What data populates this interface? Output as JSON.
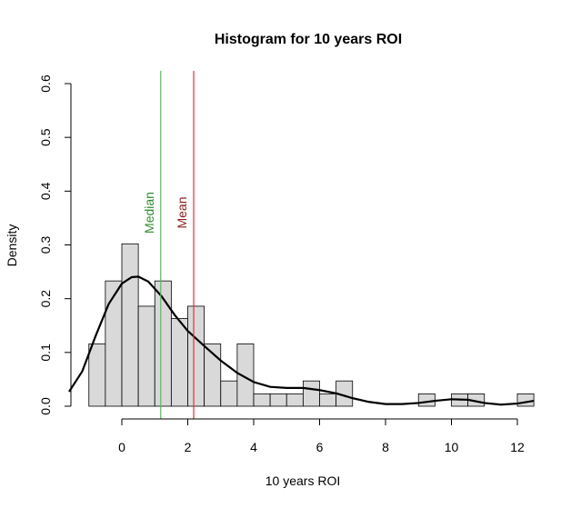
{
  "chart_data": {
    "type": "histogram",
    "title": "Histogram for 10 years ROI",
    "xlabel": "10 years ROI",
    "ylabel": "Density",
    "xlim": [
      -1.6,
      12.5
    ],
    "ylim": [
      0,
      0.6
    ],
    "x_ticks": [
      0,
      2,
      4,
      6,
      8,
      10,
      12
    ],
    "y_ticks": [
      0.0,
      0.1,
      0.2,
      0.3,
      0.4,
      0.5,
      0.6
    ],
    "x_tick_labels": [
      "0",
      "2",
      "4",
      "6",
      "8",
      "10",
      "12"
    ],
    "y_tick_labels": [
      "0.0",
      "0.1",
      "0.2",
      "0.3",
      "0.4",
      "0.5",
      "0.6"
    ],
    "bin_width": 0.5,
    "bins": [
      {
        "start": -1.0,
        "density": 0.116
      },
      {
        "start": -0.5,
        "density": 0.233
      },
      {
        "start": 0.0,
        "density": 0.302
      },
      {
        "start": 0.5,
        "density": 0.186
      },
      {
        "start": 1.0,
        "density": 0.233
      },
      {
        "start": 1.5,
        "density": 0.163
      },
      {
        "start": 2.0,
        "density": 0.186
      },
      {
        "start": 2.5,
        "density": 0.116
      },
      {
        "start": 3.0,
        "density": 0.047
      },
      {
        "start": 3.5,
        "density": 0.116
      },
      {
        "start": 4.0,
        "density": 0.023
      },
      {
        "start": 4.5,
        "density": 0.023
      },
      {
        "start": 5.0,
        "density": 0.023
      },
      {
        "start": 5.5,
        "density": 0.047
      },
      {
        "start": 6.0,
        "density": 0.023
      },
      {
        "start": 6.5,
        "density": 0.047
      },
      {
        "start": 9.0,
        "density": 0.023
      },
      {
        "start": 10.0,
        "density": 0.023
      },
      {
        "start": 10.5,
        "density": 0.023
      },
      {
        "start": 12.0,
        "density": 0.023
      }
    ],
    "density_curve": {
      "x": [
        -1.6,
        -1.2,
        -0.8,
        -0.4,
        0.0,
        0.3,
        0.5,
        0.8,
        1.2,
        1.6,
        2.0,
        2.5,
        3.0,
        3.5,
        4.0,
        4.5,
        5.0,
        5.5,
        6.0,
        6.5,
        7.0,
        7.5,
        8.0,
        8.5,
        9.0,
        9.5,
        10.0,
        10.5,
        11.0,
        11.5,
        12.0,
        12.5
      ],
      "y": [
        0.027,
        0.065,
        0.13,
        0.19,
        0.228,
        0.24,
        0.241,
        0.232,
        0.205,
        0.17,
        0.14,
        0.112,
        0.085,
        0.062,
        0.045,
        0.036,
        0.034,
        0.034,
        0.03,
        0.024,
        0.015,
        0.008,
        0.004,
        0.004,
        0.006,
        0.01,
        0.013,
        0.012,
        0.006,
        0.003,
        0.005,
        0.01
      ]
    },
    "vlines": [
      {
        "label": "Median",
        "x": 1.18,
        "color": "#5cb85c",
        "label_color": "#2e8b2e"
      },
      {
        "label": "Mean",
        "x": 2.18,
        "color": "#e0342f",
        "label_color": "#8b1a1a"
      }
    ],
    "vline_label_y": 0.36,
    "colors": {
      "bar_fill": "#d9d9d9",
      "bar_stroke": "#000000",
      "curve": "#000000"
    }
  }
}
